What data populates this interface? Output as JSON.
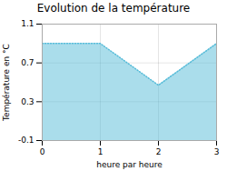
{
  "chart_data": {
    "type": "area",
    "title": "Evolution de la température",
    "x_label": "heure par heure",
    "y_label": "Température en °C",
    "x": [
      0,
      1,
      2,
      3
    ],
    "values": [
      0.9,
      0.9,
      0.47,
      0.9
    ],
    "xlim": [
      0,
      3
    ],
    "ylim": [
      -0.1,
      1.1
    ],
    "xticks": [
      0,
      1,
      2,
      3
    ],
    "yticks": [
      -0.1,
      0.3,
      0.7,
      1.1
    ],
    "color": "#55bbd8",
    "line_style": "dotted",
    "grid": true
  }
}
